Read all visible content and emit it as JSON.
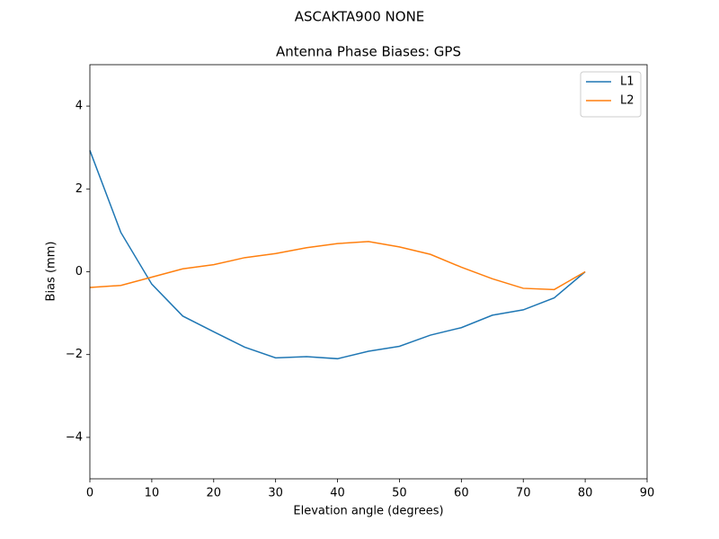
{
  "chart_data": {
    "type": "line",
    "suptitle": "ASCAKTA900      NONE",
    "title": "Antenna Phase Biases: GPS",
    "x_label": "Elevation angle (degrees)",
    "y_label": "Bias (mm)",
    "x": [
      0,
      5,
      10,
      15,
      20,
      25,
      30,
      35,
      40,
      45,
      50,
      55,
      60,
      65,
      70,
      75,
      80
    ],
    "series": [
      {
        "name": "L1",
        "color": "#1f77b4",
        "values": [
          2.93,
          0.95,
          -0.3,
          -1.07,
          -1.45,
          -1.82,
          -2.08,
          -2.05,
          -2.1,
          -1.92,
          -1.8,
          -1.53,
          -1.35,
          -1.05,
          -0.92,
          -0.63,
          0.0
        ]
      },
      {
        "name": "L2",
        "color": "#ff7f0e",
        "values": [
          -0.38,
          -0.33,
          -0.13,
          0.07,
          0.17,
          0.34,
          0.44,
          0.58,
          0.68,
          0.73,
          0.6,
          0.42,
          0.11,
          -0.17,
          -0.4,
          -0.43,
          0.0
        ]
      }
    ],
    "xlim": [
      0,
      90
    ],
    "xticks": [
      0,
      10,
      20,
      30,
      40,
      50,
      60,
      70,
      80,
      90
    ],
    "ylim": [
      -5,
      5
    ],
    "yticks": [
      {
        "value": -4,
        "label": "−4"
      },
      {
        "value": -2,
        "label": "−2"
      },
      0,
      2,
      4
    ],
    "legend": "upper right",
    "grid": false
  }
}
